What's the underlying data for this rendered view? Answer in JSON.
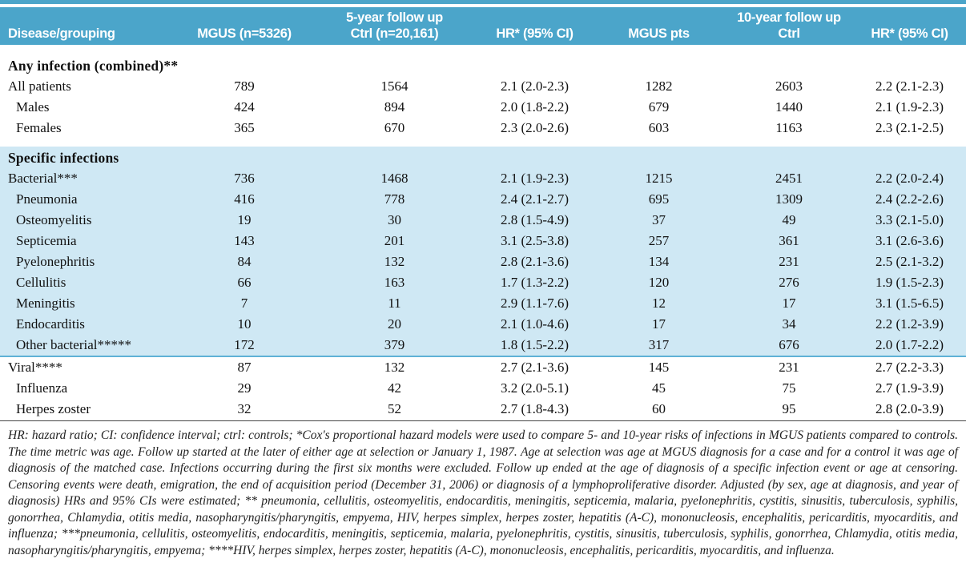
{
  "colors": {
    "header_bg": "#4BA5CA",
    "shaded_section_bg": "#CFE8F4",
    "shaded_section_border": "#5FB2D6"
  },
  "table": {
    "header": {
      "group_5yr": "5-year follow up",
      "group_10yr": "10-year follow up",
      "columns": [
        "Disease/grouping",
        "MGUS (n=5326)",
        "Ctrl (n=20,161)",
        "HR* (95% CI)",
        "MGUS pts",
        "Ctrl",
        "HR* (95% CI)"
      ]
    },
    "sections": [
      {
        "id": "any-infection",
        "title": "Any infection (combined)**",
        "shaded": false,
        "rows": [
          {
            "label": "All patients",
            "indent": false,
            "values": [
              "789",
              "1564",
              "2.1 (2.0-2.3)",
              "1282",
              "2603",
              "2.2 (2.1-2.3)"
            ]
          },
          {
            "label": "Males",
            "indent": true,
            "values": [
              "424",
              "894",
              "2.0 (1.8-2.2)",
              "679",
              "1440",
              "2.1 (1.9-2.3)"
            ]
          },
          {
            "label": "Females",
            "indent": true,
            "values": [
              "365",
              "670",
              "2.3 (2.0-2.6)",
              "603",
              "1163",
              "2.3 (2.1-2.5)"
            ]
          }
        ]
      },
      {
        "id": "specific-infections",
        "title": "Specific infections",
        "shaded": true,
        "rows": [
          {
            "label": "Bacterial***",
            "indent": false,
            "values": [
              "736",
              "1468",
              "2.1 (1.9-2.3)",
              "1215",
              "2451",
              "2.2 (2.0-2.4)"
            ]
          },
          {
            "label": "Pneumonia",
            "indent": true,
            "values": [
              "416",
              "778",
              "2.4 (2.1-2.7)",
              "695",
              "1309",
              "2.4 (2.2-2.6)"
            ]
          },
          {
            "label": "Osteomyelitis",
            "indent": true,
            "values": [
              "19",
              "30",
              "2.8 (1.5-4.9)",
              "37",
              "49",
              "3.3 (2.1-5.0)"
            ]
          },
          {
            "label": "Septicemia",
            "indent": true,
            "values": [
              "143",
              "201",
              "3.1 (2.5-3.8)",
              "257",
              "361",
              "3.1 (2.6-3.6)"
            ]
          },
          {
            "label": "Pyelonephritis",
            "indent": true,
            "values": [
              "84",
              "132",
              "2.8 (2.1-3.6)",
              "134",
              "231",
              "2.5 (2.1-3.2)"
            ]
          },
          {
            "label": "Cellulitis",
            "indent": true,
            "values": [
              "66",
              "163",
              "1.7 (1.3-2.2)",
              "120",
              "276",
              "1.9 (1.5-2.3)"
            ]
          },
          {
            "label": "Meningitis",
            "indent": true,
            "values": [
              "7",
              "11",
              "2.9 (1.1-7.6)",
              "12",
              "17",
              "3.1 (1.5-6.5)"
            ]
          },
          {
            "label": "Endocarditis",
            "indent": true,
            "values": [
              "10",
              "20",
              "2.1 (1.0-4.6)",
              "17",
              "34",
              "2.2 (1.2-3.9)"
            ]
          },
          {
            "label": "Other bacterial*****",
            "indent": true,
            "values": [
              "172",
              "379",
              "1.8 (1.5-2.2)",
              "317",
              "676",
              "2.0 (1.7-2.2)"
            ]
          }
        ]
      },
      {
        "id": "viral",
        "title": null,
        "shaded": false,
        "rows": [
          {
            "label": "Viral****",
            "indent": false,
            "values": [
              "87",
              "132",
              "2.7 (2.1-3.6)",
              "145",
              "231",
              "2.7 (2.2-3.3)"
            ]
          },
          {
            "label": "Influenza",
            "indent": true,
            "values": [
              "29",
              "42",
              "3.2 (2.0-5.1)",
              "45",
              "75",
              "2.7 (1.9-3.9)"
            ]
          },
          {
            "label": "Herpes zoster",
            "indent": true,
            "values": [
              "32",
              "52",
              "2.7 (1.8-4.3)",
              "60",
              "95",
              "2.8 (2.0-3.9)"
            ]
          }
        ]
      }
    ]
  },
  "footnote": "HR: hazard ratio; CI: confidence interval; ctrl: controls; *Cox's proportional hazard models were used to compare 5- and 10-year risks of infections in MGUS patients compared to controls. The time metric was age. Follow up started at the later of either age at selection or January 1, 1987. Age at selection was age at MGUS diagnosis for a case and for a control it was age of diagnosis of the matched case. Infections occurring during the first six months were excluded. Follow up ended at the age of diagnosis of a specific infection event or age at censoring. Censoring events were death, emigration, the end of acquisition period (December 31, 2006) or diagnosis of a lymphoproliferative disorder. Adjusted (by sex, age at diagnosis, and year of diagnosis) HRs and 95% CIs were estimated; ** pneumonia, cellulitis, osteomyelitis, endocarditis, meningitis, septicemia, malaria, pyelonephritis, cystitis, sinusitis, tuberculosis, syphilis, gonorrhea, Chlamydia, otitis media, nasopharyngitis/pharyngitis, empyema, HIV, herpes simplex, herpes zoster, hepatitis (A-C), mononucleosis, encephalitis, pericarditis, myocarditis, and influenza; ***pneumonia, cellulitis, osteomyelitis, endocarditis, meningitis, septicemia, malaria, pyelonephritis, cystitis, sinusitis, tuberculosis, syphilis, gonorrhea, Chlamydia, otitis media, nasopharyngitis/pharyngitis, empyema; ****HIV, herpes simplex, herpes zoster, hepatitis (A-C), mononucleosis, encephalitis, pericarditis, myocarditis, and influenza."
}
